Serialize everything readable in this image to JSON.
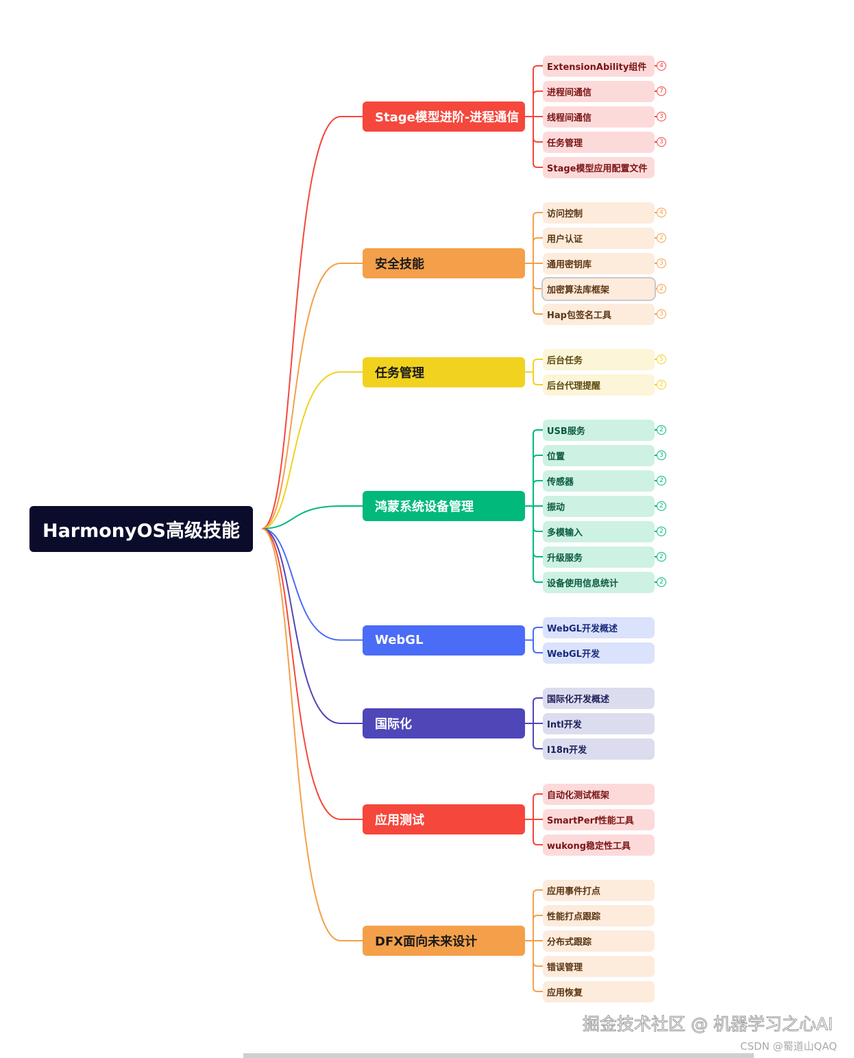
{
  "root": {
    "label": "HarmonyOS高级技能",
    "color": "#0b0b2b"
  },
  "branches": [
    {
      "label": "Stage模型进阶-进程通信",
      "color": "#f5473c",
      "text_color": "#ffffff",
      "leaf_bg": "#fddada",
      "leaf_text": "#7a1414",
      "leaves": [
        {
          "label": "ExtensionAbility组件",
          "badge": "4"
        },
        {
          "label": "进程间通信",
          "badge": "7"
        },
        {
          "label": "线程间通信",
          "badge": "3"
        },
        {
          "label": "任务管理",
          "badge": "3"
        },
        {
          "label": "Stage模型应用配置文件"
        }
      ]
    },
    {
      "label": "安全技能",
      "color": "#f4a04a",
      "text_color": "#1a1a1a",
      "leaf_bg": "#fdebdc",
      "leaf_text": "#5a3512",
      "leaves": [
        {
          "label": "访问控制",
          "badge": "4"
        },
        {
          "label": "用户认证",
          "badge": "2"
        },
        {
          "label": "通用密钥库",
          "badge": "3"
        },
        {
          "label": "加密算法库框架",
          "badge": "2",
          "selected": true
        },
        {
          "label": "Hap包签名工具",
          "badge": "3"
        }
      ]
    },
    {
      "label": "任务管理",
      "color": "#f1d21f",
      "text_color": "#1a1a1a",
      "leaf_bg": "#fdf5d8",
      "leaf_text": "#5a4a10",
      "leaves": [
        {
          "label": "后台任务",
          "badge": "5"
        },
        {
          "label": "后台代理提醒",
          "badge": "2"
        }
      ]
    },
    {
      "label": "鸿蒙系统设备管理",
      "color": "#00b97a",
      "text_color": "#ffffff",
      "leaf_bg": "#cdf1e3",
      "leaf_text": "#0a5a40",
      "leaves": [
        {
          "label": "USB服务",
          "badge": "2"
        },
        {
          "label": "位置",
          "badge": "3"
        },
        {
          "label": "传感器",
          "badge": "2"
        },
        {
          "label": "振动",
          "badge": "2"
        },
        {
          "label": "多模输入",
          "badge": "2"
        },
        {
          "label": "升级服务",
          "badge": "2"
        },
        {
          "label": "设备使用信息统计",
          "badge": "2"
        }
      ]
    },
    {
      "label": "WebGL",
      "color": "#4a6cf7",
      "text_color": "#ffffff",
      "leaf_bg": "#dbe2fc",
      "leaf_text": "#1a2a7a",
      "leaves": [
        {
          "label": "WebGL开发概述"
        },
        {
          "label": "WebGL开发"
        }
      ]
    },
    {
      "label": "国际化",
      "color": "#4f46b8",
      "text_color": "#ffffff",
      "leaf_bg": "#dcdcef",
      "leaf_text": "#1f1f5a",
      "leaves": [
        {
          "label": "国际化开发概述"
        },
        {
          "label": "Intl开发"
        },
        {
          "label": "I18n开发"
        }
      ]
    },
    {
      "label": "应用测试",
      "color": "#f5473c",
      "text_color": "#ffffff",
      "leaf_bg": "#fddada",
      "leaf_text": "#7a1414",
      "leaves": [
        {
          "label": "自动化测试框架"
        },
        {
          "label": "SmartPerf性能工具"
        },
        {
          "label": "wukong稳定性工具"
        }
      ]
    },
    {
      "label": "DFX面向未来设计",
      "color": "#f4a04a",
      "text_color": "#1a1a1a",
      "leaf_bg": "#fdebdc",
      "leaf_text": "#5a3512",
      "leaves": [
        {
          "label": "应用事件打点"
        },
        {
          "label": "性能打点跟踪"
        },
        {
          "label": "分布式跟踪"
        },
        {
          "label": "错误管理"
        },
        {
          "label": "应用恢复"
        }
      ]
    }
  ],
  "watermark": "掘金技术社区 @ 机器学习之心AI",
  "credit": "CSDN @蜀道山QAQ"
}
